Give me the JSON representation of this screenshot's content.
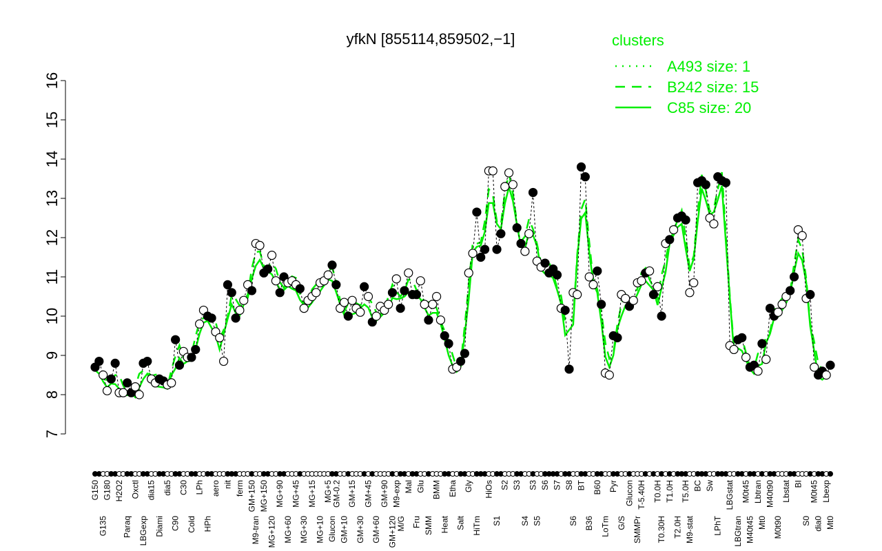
{
  "chart_data": {
    "type": "line",
    "title": "yfkN [855114,859502,−1]",
    "xlabel": "",
    "ylabel": "",
    "ylim": [
      7,
      16
    ],
    "yticks": [
      "7",
      "8",
      "9",
      "10",
      "11",
      "12",
      "13",
      "14",
      "15",
      "16"
    ],
    "grid": false,
    "legend": {
      "placement": "top-right",
      "title": "clusters",
      "entries": [
        {
          "name": "A493 size: 1",
          "style": "dotted"
        },
        {
          "name": "B242 size: 15",
          "style": "dashed"
        },
        {
          "name": "C85 size: 20",
          "style": "solid"
        }
      ]
    },
    "colors": {
      "points": "#000000",
      "clusters": "#00ee00",
      "title": "#000000"
    },
    "points": [
      [
        "G150",
        8.7,
        1
      ],
      [
        "",
        8.85,
        1
      ],
      [
        "G135",
        8.5,
        0
      ],
      [
        "G180",
        8.1,
        0
      ],
      [
        "",
        8.4,
        1
      ],
      [
        "",
        8.8,
        1
      ],
      [
        "H2O2",
        8.05,
        0
      ],
      [
        "",
        8.05,
        0
      ],
      [
        "Paraq",
        8.3,
        1
      ],
      [
        "",
        8.05,
        1
      ],
      [
        "Oxctl",
        8.2,
        0
      ],
      [
        "",
        8.0,
        0
      ],
      [
        "LBGexp",
        8.8,
        1
      ],
      [
        "",
        8.85,
        1
      ],
      [
        "dia15",
        8.4,
        0
      ],
      [
        "",
        8.3,
        0
      ],
      [
        "Diami",
        8.4,
        1
      ],
      [
        "",
        8.35,
        1
      ],
      [
        "dia5",
        8.25,
        0
      ],
      [
        "",
        8.3,
        0
      ],
      [
        "C90",
        9.4,
        1
      ],
      [
        "",
        8.75,
        1
      ],
      [
        "C30",
        9.1,
        0
      ],
      [
        "",
        8.95,
        0
      ],
      [
        "Cold",
        8.95,
        1
      ],
      [
        "",
        9.15,
        1
      ],
      [
        "LPh",
        9.8,
        0
      ],
      [
        "",
        10.15,
        0
      ],
      [
        "HPh",
        10.0,
        1
      ],
      [
        "",
        9.95,
        1
      ],
      [
        "aero",
        9.6,
        0
      ],
      [
        "",
        9.45,
        0
      ],
      [
        "",
        8.85,
        0
      ],
      [
        "nit",
        10.8,
        1
      ],
      [
        "",
        10.6,
        1
      ],
      [
        "",
        9.95,
        1
      ],
      [
        "ferm",
        10.15,
        0
      ],
      [
        "",
        10.4,
        0
      ],
      [
        "",
        10.8,
        0
      ],
      [
        "GM+150",
        10.65,
        1
      ],
      [
        "M9-tran",
        11.85,
        0
      ],
      [
        "",
        11.8,
        0
      ],
      [
        "MG+150",
        11.1,
        1
      ],
      [
        "",
        11.2,
        1
      ],
      [
        "MG+120",
        11.55,
        0
      ],
      [
        "",
        10.9,
        0
      ],
      [
        "MG+90",
        10.6,
        1
      ],
      [
        "",
        11.0,
        1
      ],
      [
        "MG+60",
        10.85,
        0
      ],
      [
        "",
        10.9,
        0
      ],
      [
        "MG+45",
        10.8,
        0
      ],
      [
        "",
        10.7,
        1
      ],
      [
        "MG+30",
        10.2,
        0
      ],
      [
        "",
        10.4,
        0
      ],
      [
        "MG+15",
        10.5,
        0
      ],
      [
        "",
        10.6,
        0
      ],
      [
        "MG+10",
        10.85,
        0
      ],
      [
        "",
        10.9,
        0
      ],
      [
        "MG+5",
        11.05,
        0
      ],
      [
        "Glucon",
        11.3,
        1
      ],
      [
        "GM-0.2",
        10.8,
        1
      ],
      [
        "",
        10.2,
        0
      ],
      [
        "GM+10",
        10.35,
        0
      ],
      [
        "",
        10.0,
        1
      ],
      [
        "GM+15",
        10.4,
        0
      ],
      [
        "",
        10.2,
        0
      ],
      [
        "GM+30",
        10.1,
        0
      ],
      [
        "",
        10.75,
        1
      ],
      [
        "GM+45",
        10.5,
        0
      ],
      [
        "",
        9.85,
        1
      ],
      [
        "GM+60",
        10.0,
        0
      ],
      [
        "",
        10.25,
        0
      ],
      [
        "GM+90",
        10.15,
        0
      ],
      [
        "",
        10.3,
        0
      ],
      [
        "GM+120",
        10.6,
        1
      ],
      [
        "M9-exp",
        10.95,
        0
      ],
      [
        "M/G",
        10.2,
        1
      ],
      [
        "",
        10.65,
        1
      ],
      [
        "Mal",
        11.1,
        0
      ],
      [
        "",
        10.55,
        1
      ],
      [
        "Fru",
        10.55,
        1
      ],
      [
        "Glu",
        10.9,
        0
      ],
      [
        "",
        10.3,
        0
      ],
      [
        "SMM",
        9.9,
        1
      ],
      [
        "",
        10.3,
        0
      ],
      [
        "BMM",
        10.5,
        0
      ],
      [
        "",
        9.9,
        0
      ],
      [
        "Heat",
        9.5,
        1
      ],
      [
        "",
        9.3,
        1
      ],
      [
        "Etha",
        8.65,
        0
      ],
      [
        "",
        8.7,
        0
      ],
      [
        "Salt",
        8.85,
        1
      ],
      [
        "",
        9.05,
        1
      ],
      [
        "Gly",
        11.1,
        0
      ],
      [
        "",
        11.6,
        0
      ],
      [
        "HiTm",
        12.65,
        1
      ],
      [
        "",
        11.5,
        1
      ],
      [
        "",
        11.7,
        1
      ],
      [
        "HiOs",
        13.7,
        0
      ],
      [
        "",
        13.7,
        0
      ],
      [
        "S1",
        11.7,
        1
      ],
      [
        "",
        12.1,
        1
      ],
      [
        "S2",
        13.3,
        0
      ],
      [
        "",
        13.65,
        0
      ],
      [
        "",
        13.35,
        0
      ],
      [
        "S3",
        12.25,
        1
      ],
      [
        "",
        11.85,
        1
      ],
      [
        "S4",
        11.65,
        0
      ],
      [
        "",
        12.1,
        0
      ],
      [
        "S3",
        13.15,
        1
      ],
      [
        "S5",
        11.4,
        0
      ],
      [
        "",
        11.25,
        0
      ],
      [
        "S6",
        11.35,
        1
      ],
      [
        "",
        11.1,
        1
      ],
      [
        "",
        11.2,
        1
      ],
      [
        "S7",
        11.05,
        1
      ],
      [
        "",
        10.2,
        0
      ],
      [
        "",
        10.15,
        1
      ],
      [
        "S8",
        8.65,
        1
      ],
      [
        "S6",
        10.6,
        0
      ],
      [
        "",
        10.55,
        0
      ],
      [
        "BT",
        13.8,
        1
      ],
      [
        "",
        13.55,
        1
      ],
      [
        "B36",
        11.0,
        0
      ],
      [
        "",
        10.8,
        0
      ],
      [
        "B60",
        11.15,
        1
      ],
      [
        "",
        10.3,
        1
      ],
      [
        "LoTm",
        8.55,
        0
      ],
      [
        "",
        8.5,
        0
      ],
      [
        "Pyr",
        9.5,
        1
      ],
      [
        "",
        9.45,
        1
      ],
      [
        "G/S",
        10.55,
        0
      ],
      [
        "",
        10.45,
        0
      ],
      [
        "Glucon",
        10.25,
        1
      ],
      [
        "",
        10.4,
        0
      ],
      [
        "SMMPr",
        10.85,
        0
      ],
      [
        "T-5.40H",
        10.9,
        0
      ],
      [
        "",
        11.1,
        1
      ],
      [
        "",
        11.15,
        0
      ],
      [
        "",
        10.55,
        1
      ],
      [
        "T0.0H",
        10.75,
        0
      ],
      [
        "T0.30H",
        10.0,
        1
      ],
      [
        "",
        11.85,
        0
      ],
      [
        "T1.0H",
        11.95,
        1
      ],
      [
        "",
        12.2,
        0
      ],
      [
        "T2.0H",
        12.5,
        1
      ],
      [
        "",
        12.55,
        1
      ],
      [
        "T5.0H",
        12.45,
        1
      ],
      [
        "M9-stat",
        10.6,
        0
      ],
      [
        "",
        10.85,
        0
      ],
      [
        "BC",
        13.4,
        1
      ],
      [
        "",
        13.45,
        1
      ],
      [
        "",
        13.35,
        1
      ],
      [
        "Sw",
        12.5,
        0
      ],
      [
        "",
        12.35,
        0
      ],
      [
        "LPhT",
        13.55,
        1
      ],
      [
        "",
        13.45,
        1
      ],
      [
        "",
        13.4,
        1
      ],
      [
        "LBGstat",
        9.25,
        0
      ],
      [
        "",
        9.15,
        0
      ],
      [
        "LBGtran",
        9.4,
        1
      ],
      [
        "",
        9.45,
        1
      ],
      [
        "M0t45",
        8.95,
        0
      ],
      [
        "M40t45",
        8.7,
        1
      ],
      [
        "",
        8.75,
        1
      ],
      [
        "Lbtran",
        8.6,
        0
      ],
      [
        "Mt0",
        9.3,
        1
      ],
      [
        "",
        8.9,
        0
      ],
      [
        "M40t90",
        10.2,
        1
      ],
      [
        "",
        10.0,
        1
      ],
      [
        "M0t90",
        10.1,
        0
      ],
      [
        "",
        10.3,
        0
      ],
      [
        "Lbstat",
        10.5,
        0
      ],
      [
        "",
        10.65,
        1
      ],
      [
        "",
        11.0,
        1
      ],
      [
        "BI",
        12.2,
        0
      ],
      [
        "",
        12.05,
        0
      ],
      [
        "S0",
        10.45,
        0
      ],
      [
        "",
        10.55,
        1
      ],
      [
        "M0t45",
        8.7,
        0
      ],
      [
        "dia0",
        8.5,
        1
      ],
      [
        "",
        8.6,
        1
      ],
      [
        "Lbexp",
        8.5,
        0
      ],
      [
        "Mt0",
        8.75,
        1
      ]
    ]
  }
}
